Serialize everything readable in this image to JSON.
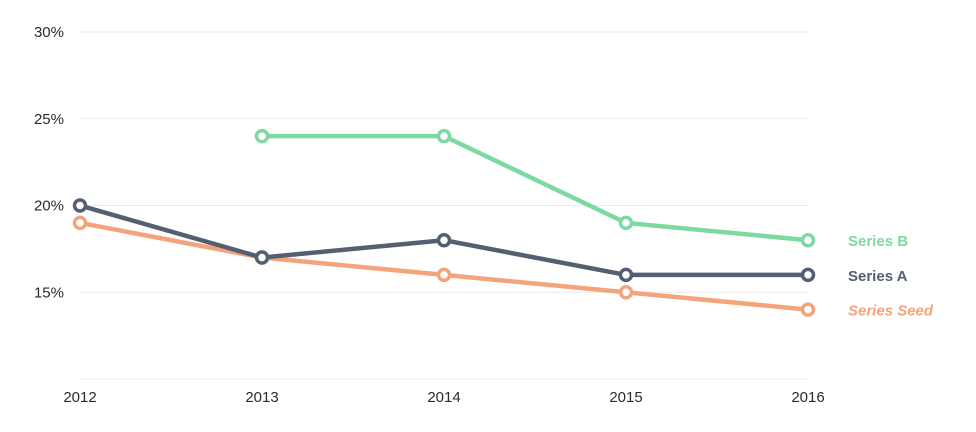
{
  "chart_data": {
    "type": "line",
    "title": "",
    "xlabel": "",
    "ylabel": "",
    "x": [
      "2012",
      "2013",
      "2014",
      "2015",
      "2016"
    ],
    "y_ticks": [
      {
        "value": 30,
        "label": "30%"
      },
      {
        "value": 25,
        "label": "25%"
      },
      {
        "value": 20,
        "label": "20%"
      },
      {
        "value": 15,
        "label": "15%"
      }
    ],
    "ylim": [
      10,
      30
    ],
    "grid": true,
    "legend_position": "right, at end of each line",
    "series": [
      {
        "name": "Series B",
        "color": "#7dd9a2",
        "italic": false,
        "values": [
          null,
          24,
          24,
          19,
          18
        ]
      },
      {
        "name": "Series A",
        "color": "#555f72",
        "italic": false,
        "values": [
          20,
          17,
          18,
          16,
          16
        ]
      },
      {
        "name": "Series Seed",
        "color": "#f4a47a",
        "italic": true,
        "values": [
          19,
          17,
          16,
          15,
          14
        ]
      }
    ]
  }
}
